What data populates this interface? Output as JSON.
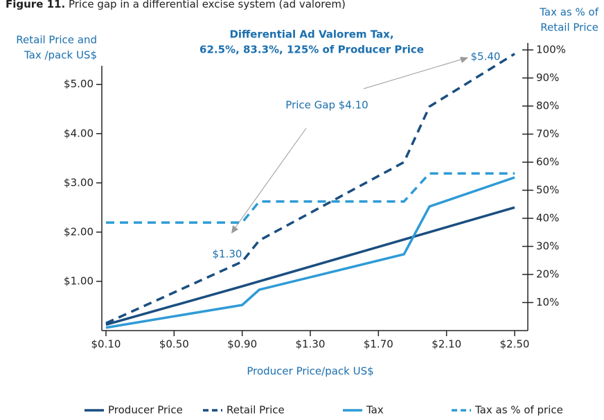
{
  "chart_data": {
    "type": "line",
    "figure_label": "Figure 11.",
    "title": "Price gap in a differential excise system (ad valorem)",
    "subtitle": [
      "Differential Ad Valorem Tax,",
      "62.5%, 83.3%, 125% of Producer Price"
    ],
    "ylabel": [
      "Retail Price and",
      "Tax /pack US$"
    ],
    "y2label": [
      "Tax as % of",
      "Retail Price"
    ],
    "xlabel": "Producer Price/pack US$",
    "annotations": [
      "Price Gap $4.10",
      "$1.30",
      "$5.40"
    ],
    "x": [
      0.1,
      0.9,
      1.0,
      1.85,
      2.0,
      2.5
    ],
    "xlim": [
      0.1,
      2.5
    ],
    "xticks": [
      {
        "value": 0.1,
        "label": "$0.10"
      },
      {
        "value": 0.5,
        "label": "$0.50"
      },
      {
        "value": 0.9,
        "label": "$0.90"
      },
      {
        "value": 1.3,
        "label": "$1.30"
      },
      {
        "value": 1.7,
        "label": "$1.70"
      },
      {
        "value": 2.1,
        "label": "$2.10"
      },
      {
        "value": 2.5,
        "label": "$2.50"
      }
    ],
    "ylim": [
      0,
      5.7
    ],
    "yticks": [
      {
        "value": 1,
        "label": "$1.00"
      },
      {
        "value": 2,
        "label": "$2.00"
      },
      {
        "value": 3,
        "label": "$3.00"
      },
      {
        "value": 4,
        "label": "$4.00"
      },
      {
        "value": 5,
        "label": "$5.00"
      }
    ],
    "y2lim": [
      0,
      100
    ],
    "y2ticks": [
      {
        "value": 10,
        "label": "10%"
      },
      {
        "value": 20,
        "label": "20%"
      },
      {
        "value": 30,
        "label": "30%"
      },
      {
        "value": 40,
        "label": "40%"
      },
      {
        "value": 50,
        "label": "50%"
      },
      {
        "value": 60,
        "label": "60%"
      },
      {
        "value": 70,
        "label": "70%"
      },
      {
        "value": 80,
        "label": "80%"
      },
      {
        "value": 90,
        "label": "90%"
      },
      {
        "value": 100,
        "label": "100%"
      }
    ],
    "series": [
      {
        "name": "Producer Price",
        "color": "#1a4e80",
        "dash": false,
        "values": [
          0.12,
          0.9,
          1.0,
          1.85,
          2.0,
          2.5
        ]
      },
      {
        "name": "Retail Price",
        "color": "#1a4e80",
        "dash": true,
        "values": [
          0.15,
          1.4,
          1.83,
          3.42,
          4.55,
          5.62
        ]
      },
      {
        "name": "Tax",
        "color": "#2e9bd6",
        "dash": false,
        "values": [
          0.06,
          0.52,
          0.83,
          1.55,
          2.52,
          3.11
        ]
      },
      {
        "name": "Tax as % of price",
        "color": "#2e9bd6",
        "dash": true,
        "axis": "y2",
        "values": [
          38.5,
          38.5,
          46,
          46,
          56,
          56
        ]
      }
    ]
  }
}
